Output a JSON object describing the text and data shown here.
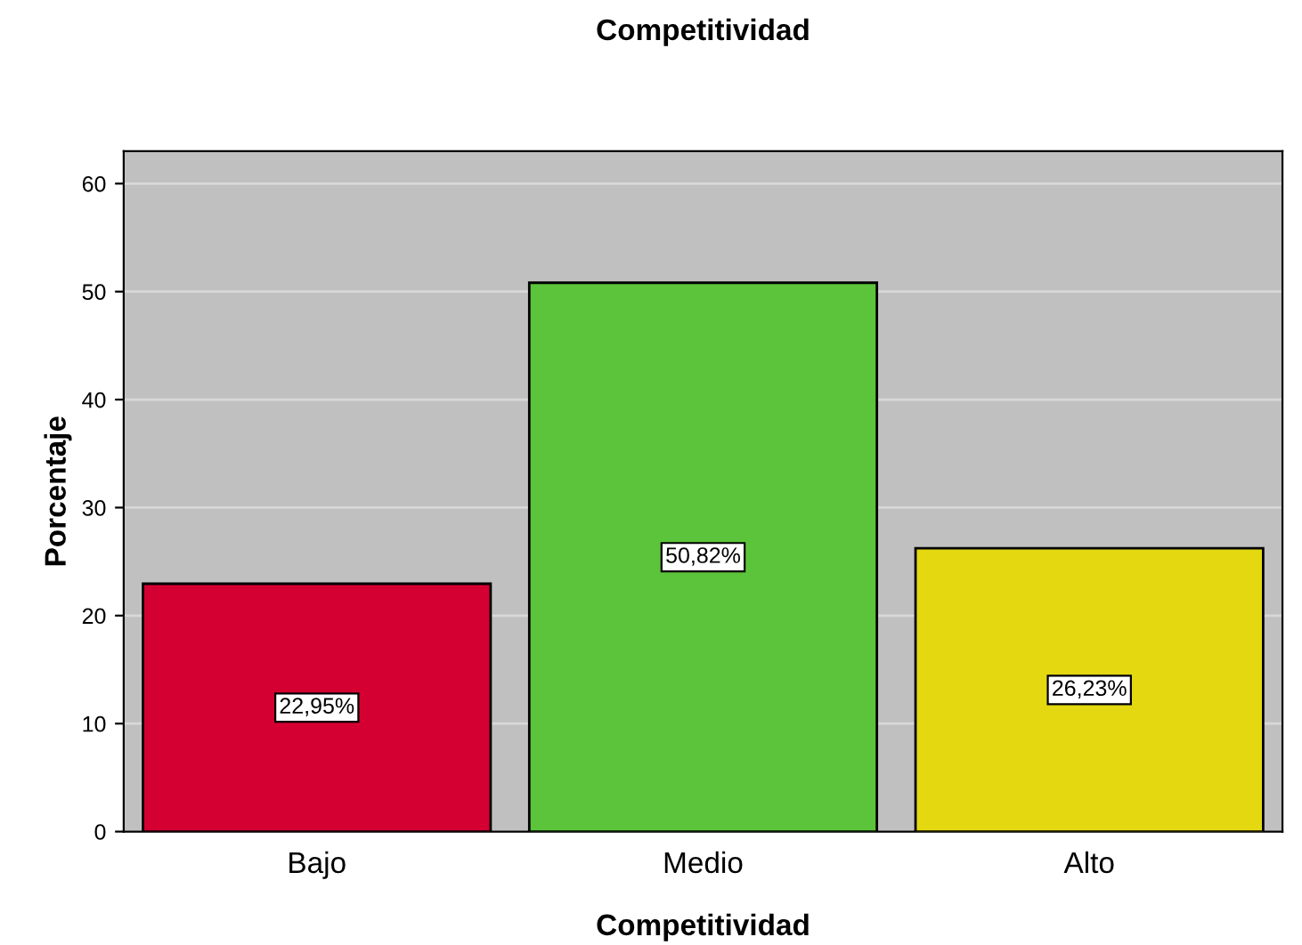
{
  "chart_data": {
    "type": "bar",
    "title": "Competitividad",
    "xlabel": "Competitividad",
    "ylabel": "Porcentaje",
    "categories": [
      "Bajo",
      "Medio",
      "Alto"
    ],
    "values": [
      22.95,
      50.82,
      26.23
    ],
    "colors": [
      "#d50032",
      "#5cc43a",
      "#e4d811"
    ],
    "value_labels": [
      "22,95%",
      "50,82%",
      "26,23%"
    ],
    "ylim": [
      0,
      63
    ],
    "yticks": [
      0,
      10,
      20,
      30,
      40,
      50,
      60
    ],
    "grid": "y",
    "legend": false
  }
}
